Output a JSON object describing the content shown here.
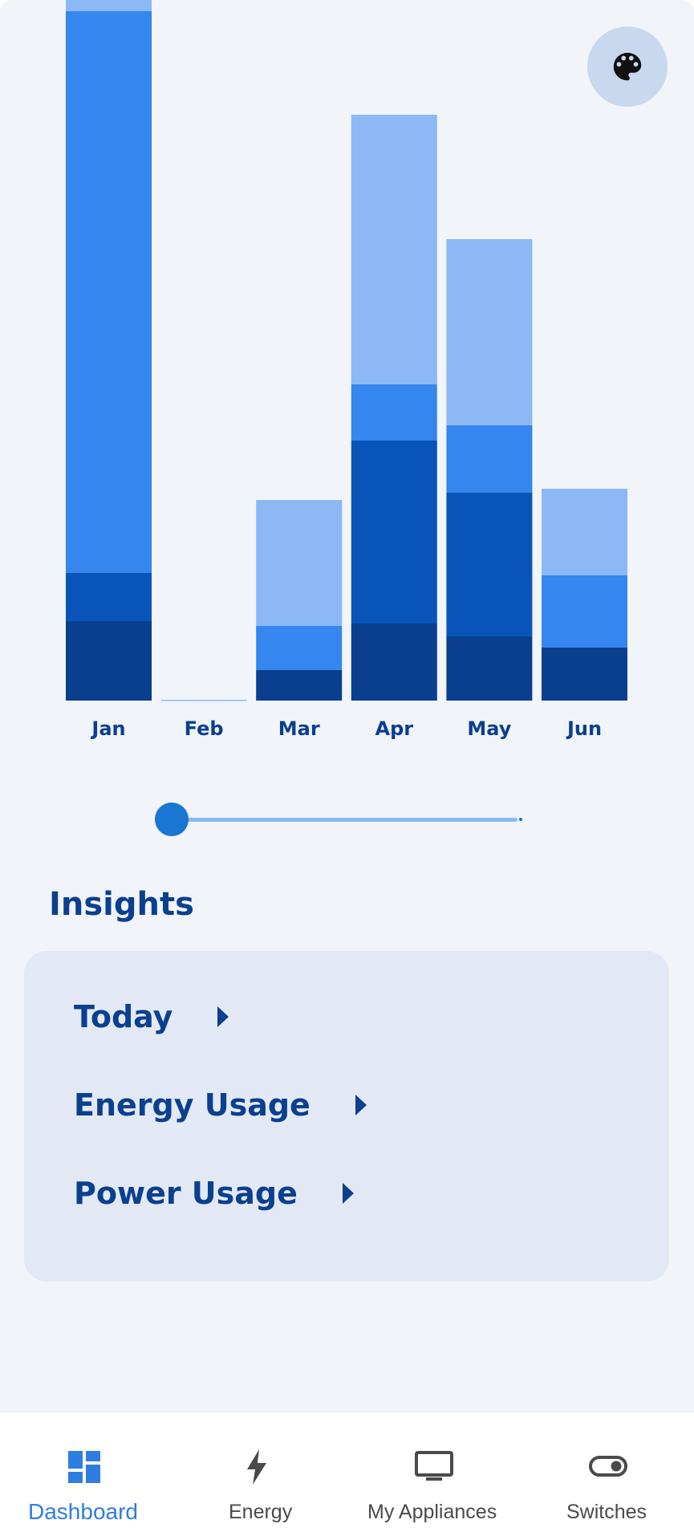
{
  "chart_data": {
    "type": "bar",
    "stacked": true,
    "categories": [
      "Jan",
      "Feb",
      "Mar",
      "Apr",
      "May",
      "Jun"
    ],
    "series": [
      {
        "color": "#0a3f8f",
        "values": [
          99,
          0,
          38,
          96,
          80,
          66
        ]
      },
      {
        "color": "#0954b8",
        "values": [
          60,
          0,
          0,
          228,
          179,
          0
        ]
      },
      {
        "color": "#3586ee",
        "values": [
          700,
          0,
          55,
          70,
          84,
          90
        ]
      },
      {
        "color": "#8cb8f6",
        "values": [
          14,
          1,
          157,
          336,
          232,
          108
        ]
      }
    ],
    "ylim": [
      0,
      873
    ]
  },
  "theme_button": {
    "icon": "palette-icon"
  },
  "slider": {
    "value": 0
  },
  "insights": {
    "title": "Insights",
    "items": [
      {
        "label": "Today"
      },
      {
        "label": "Energy Usage"
      },
      {
        "label": "Power Usage"
      }
    ]
  },
  "nav": {
    "active": "Dashboard",
    "items": [
      {
        "label": "Dashboard",
        "icon": "dashboard-icon"
      },
      {
        "label": "Energy",
        "icon": "bolt-icon"
      },
      {
        "label": "My Appliances",
        "icon": "monitor-icon"
      },
      {
        "label": "Switches",
        "icon": "toggle-icon"
      }
    ]
  }
}
